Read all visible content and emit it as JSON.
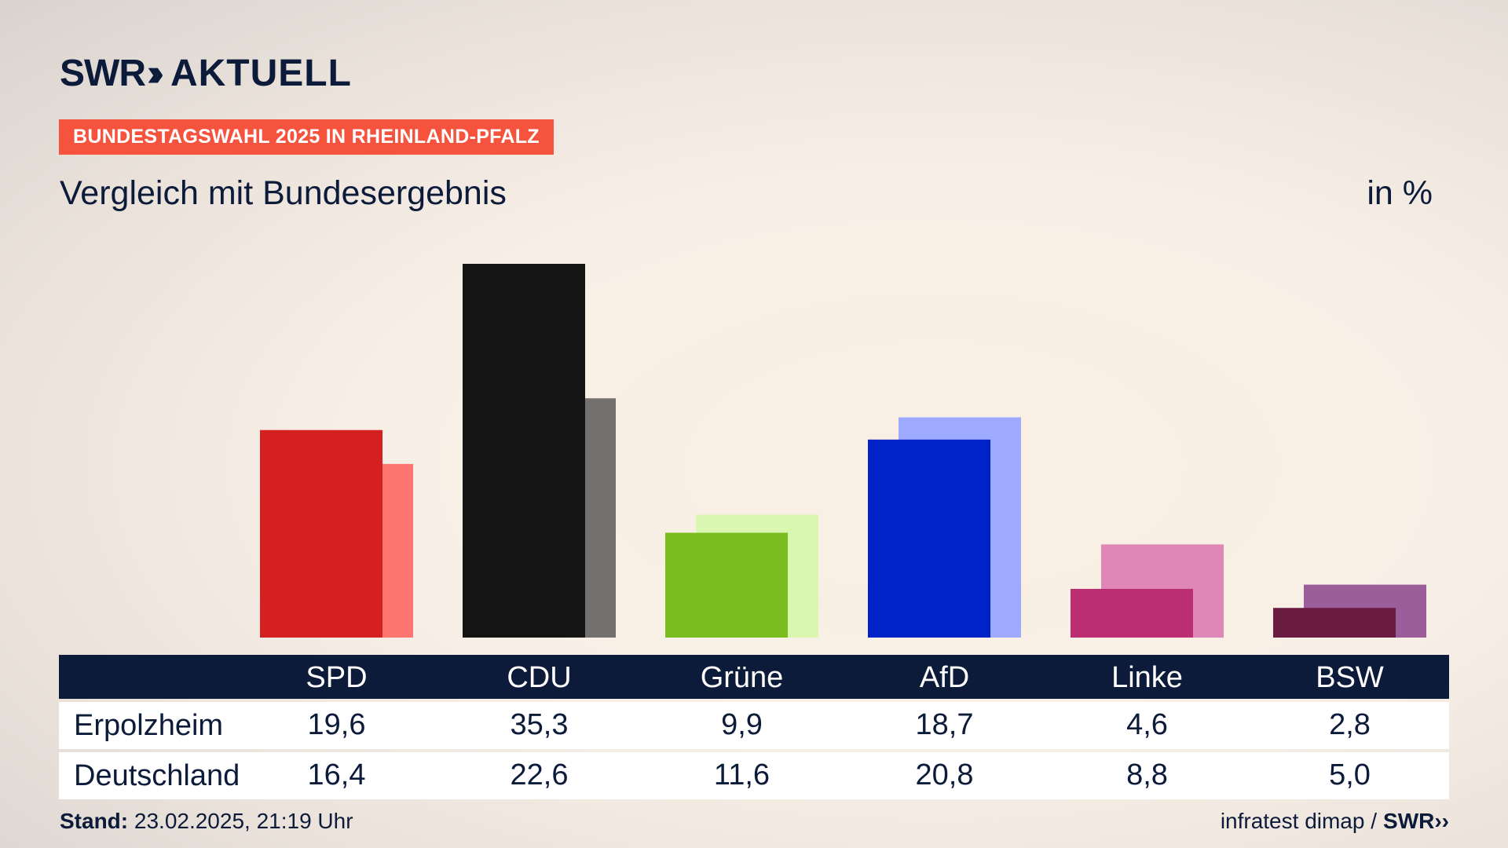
{
  "header": {
    "logo_brand": "SWR",
    "logo_product": "AKTUELL",
    "badge": "BUNDESTAGSWAHL 2025 IN RHEINLAND-PFALZ",
    "subtitle": "Vergleich mit Bundesergebnis",
    "unit": "in %"
  },
  "colors": {
    "navy": "#0c1b3a",
    "badge": "#f6533f"
  },
  "chart_data": {
    "type": "bar",
    "categories": [
      "SPD",
      "CDU",
      "Grüne",
      "AfD",
      "Linke",
      "BSW"
    ],
    "series": [
      {
        "name": "Erpolzheim",
        "values": [
          19.6,
          35.3,
          9.9,
          18.7,
          4.6,
          2.8
        ],
        "colors": [
          "#d42020",
          "#141414",
          "#7abd1e",
          "#0022c9",
          "#bb2f72",
          "#6b1a40"
        ]
      },
      {
        "name": "Deutschland",
        "values": [
          16.4,
          22.6,
          11.6,
          20.8,
          8.8,
          5.0
        ],
        "colors": [
          "#ff7570",
          "#737170",
          "#d9f7b0",
          "#9eaaff",
          "#df88b7",
          "#9c5e9a"
        ]
      }
    ],
    "ylim": [
      0,
      35.3
    ]
  },
  "footer": {
    "stand_label": "Stand:",
    "stand_value": "23.02.2025, 21:19 Uhr",
    "source": "infratest dimap /",
    "source_logo": "SWR"
  }
}
